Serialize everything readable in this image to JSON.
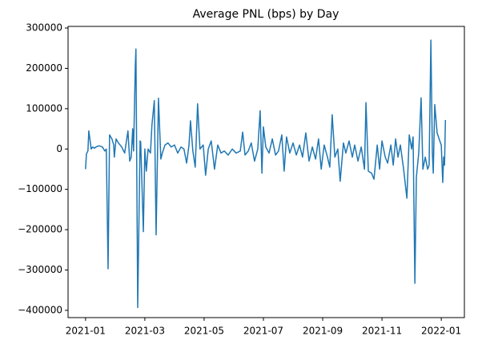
{
  "chart_data": {
    "type": "line",
    "title": "Average PNL (bps) by Day",
    "x": [
      0.0,
      0.03,
      0.08,
      0.11,
      0.19,
      0.24,
      0.3,
      0.35,
      0.46,
      0.57,
      0.65,
      0.7,
      0.76,
      0.81,
      0.89,
      0.95,
      0.97,
      1.03,
      1.11,
      1.22,
      1.32,
      1.43,
      1.49,
      1.54,
      1.59,
      1.62,
      1.68,
      1.7,
      1.76,
      1.84,
      1.86,
      1.95,
      2.0,
      2.05,
      2.11,
      2.19,
      2.24,
      2.32,
      2.38,
      2.46,
      2.54,
      2.59,
      2.68,
      2.78,
      2.89,
      3.0,
      3.11,
      3.22,
      3.32,
      3.41,
      3.49,
      3.54,
      3.62,
      3.7,
      3.78,
      3.86,
      3.97,
      4.05,
      4.14,
      4.24,
      4.35,
      4.46,
      4.57,
      4.68,
      4.81,
      4.95,
      5.08,
      5.22,
      5.3,
      5.38,
      5.49,
      5.59,
      5.7,
      5.81,
      5.89,
      5.95,
      6.0,
      6.08,
      6.19,
      6.3,
      6.41,
      6.51,
      6.62,
      6.7,
      6.78,
      6.89,
      7.0,
      7.11,
      7.22,
      7.32,
      7.43,
      7.54,
      7.65,
      7.76,
      7.86,
      7.95,
      8.05,
      8.16,
      8.24,
      8.32,
      8.41,
      8.51,
      8.59,
      8.7,
      8.78,
      8.89,
      9.0,
      9.08,
      9.19,
      9.3,
      9.41,
      9.46,
      9.54,
      9.65,
      9.73,
      9.84,
      9.92,
      10.0,
      10.11,
      10.19,
      10.3,
      10.38,
      10.46,
      10.54,
      10.62,
      10.73,
      10.84,
      10.92,
      11.0,
      11.05,
      11.11,
      11.16,
      11.24,
      11.32,
      11.38,
      11.46,
      11.54,
      11.59,
      11.65,
      11.7,
      11.73,
      11.78,
      11.86,
      11.95,
      12.0,
      12.05,
      12.08,
      12.11,
      12.14
    ],
    "series": [
      {
        "name": "Average PNL",
        "color": "#1f77b4",
        "values": [
          -50000,
          -12000,
          -5000,
          45000,
          0,
          5000,
          2000,
          5000,
          8000,
          5000,
          -5000,
          0,
          -297000,
          35000,
          25000,
          10000,
          -20000,
          25000,
          15000,
          5000,
          -10000,
          45000,
          -30000,
          -20000,
          50000,
          -5000,
          210000,
          248000,
          -393000,
          20000,
          18000,
          -205000,
          0,
          -55000,
          0,
          -10000,
          60000,
          120000,
          -213000,
          126000,
          -25000,
          -10000,
          10000,
          15000,
          5000,
          10000,
          -10000,
          5000,
          0,
          -35000,
          10000,
          70000,
          -5000,
          -45000,
          112000,
          0,
          10000,
          -65000,
          0,
          20000,
          -50000,
          10000,
          -10000,
          -5000,
          -15000,
          0,
          -10000,
          -5000,
          42000,
          -15000,
          -5000,
          15000,
          -30000,
          0,
          95000,
          -60000,
          55000,
          5000,
          -10000,
          25000,
          -15000,
          -5000,
          35000,
          -55000,
          30000,
          -10000,
          15000,
          -15000,
          10000,
          -20000,
          40000,
          -30000,
          5000,
          -25000,
          25000,
          -50000,
          10000,
          -20000,
          -45000,
          85000,
          -20000,
          0,
          -80000,
          15000,
          -10000,
          20000,
          -20000,
          10000,
          -30000,
          5000,
          -50000,
          115000,
          -55000,
          -60000,
          -75000,
          10000,
          -50000,
          20000,
          -20000,
          -35000,
          10000,
          -40000,
          25000,
          -20000,
          10000,
          -50000,
          -122000,
          35000,
          0,
          30000,
          -333000,
          -70000,
          -10000,
          127000,
          -50000,
          -20000,
          -50000,
          -40000,
          270000,
          -10000,
          -60000,
          110000,
          40000,
          20000,
          10000,
          -83000,
          -20000,
          -40000,
          72000
        ]
      }
    ],
    "xlim": [
      -0.59,
      12.78
    ],
    "xticks": [
      {
        "value": 0,
        "label": "2021-01"
      },
      {
        "value": 2,
        "label": "2021-03"
      },
      {
        "value": 4,
        "label": "2021-05"
      },
      {
        "value": 6,
        "label": "2021-07"
      },
      {
        "value": 8,
        "label": "2021-09"
      },
      {
        "value": 10,
        "label": "2021-11"
      },
      {
        "value": 12,
        "label": "2022-01"
      }
    ],
    "ylim": [
      -418000,
      304000
    ],
    "yticks": [
      {
        "value": -400000,
        "label": "−400000"
      },
      {
        "value": -300000,
        "label": "−300000"
      },
      {
        "value": -200000,
        "label": "−200000"
      },
      {
        "value": -100000,
        "label": "−100000"
      },
      0,
      100000,
      200000,
      300000
    ],
    "grid": false
  }
}
